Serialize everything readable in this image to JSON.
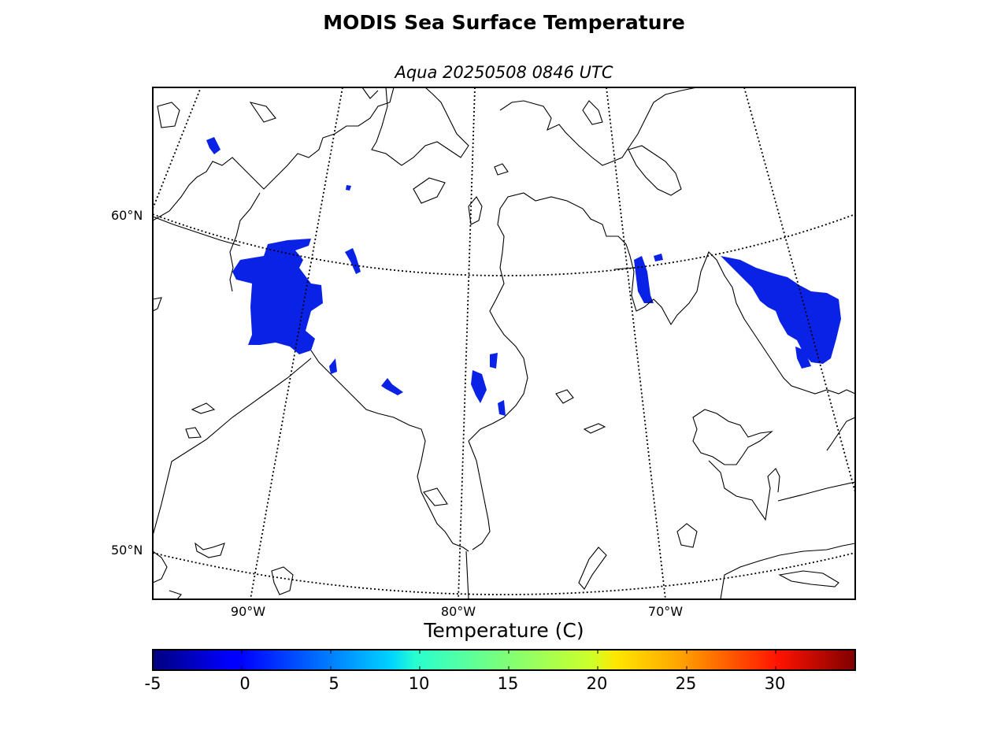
{
  "title": "MODIS Sea Surface Temperature",
  "subtitle": "Aqua 20250508 0846 UTC",
  "map": {
    "lat_labels": [
      "60°N",
      "50°N"
    ],
    "lon_labels": [
      "90°W",
      "80°W",
      "70°W"
    ],
    "land_color": "#ffffff",
    "coastline_color": "#000000",
    "sst_color": "#0a22e6"
  },
  "colorbar": {
    "title": "Temperature (C)",
    "range": [
      -5,
      35
    ],
    "tick_labels": [
      "-5",
      "0",
      "5",
      "10",
      "15",
      "20",
      "25",
      "30"
    ],
    "colormap": "jet"
  }
}
